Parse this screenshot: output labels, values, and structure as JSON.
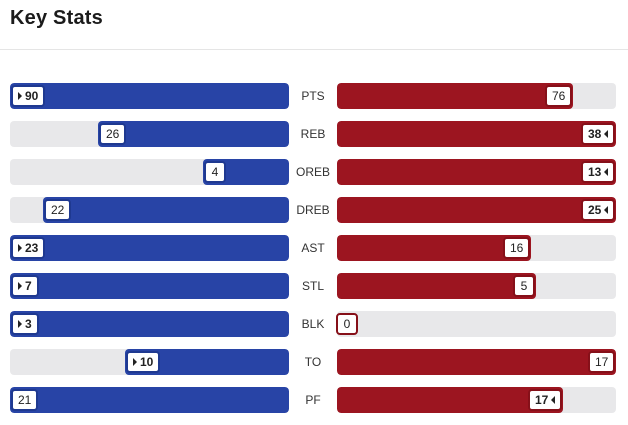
{
  "title": "Key Stats",
  "colors": {
    "left_team": "#2844a6",
    "right_team": "#9c1520",
    "track": "#e8e8ea"
  },
  "stats": [
    {
      "label": "PTS",
      "left": "90",
      "right": "76",
      "left_pct": 1.0,
      "right_pct": 0.845,
      "leader": "left"
    },
    {
      "label": "REB",
      "left": "26",
      "right": "38",
      "left_pct": 0.684,
      "right_pct": 1.0,
      "leader": "right"
    },
    {
      "label": "OREB",
      "left": "4",
      "right": "13",
      "left_pct": 0.308,
      "right_pct": 1.0,
      "leader": "right"
    },
    {
      "label": "DREB",
      "left": "22",
      "right": "25",
      "left_pct": 0.88,
      "right_pct": 1.0,
      "leader": "right"
    },
    {
      "label": "AST",
      "left": "23",
      "right": "16",
      "left_pct": 1.0,
      "right_pct": 0.696,
      "leader": "left"
    },
    {
      "label": "STL",
      "left": "7",
      "right": "5",
      "left_pct": 1.0,
      "right_pct": 0.714,
      "leader": "left"
    },
    {
      "label": "BLK",
      "left": "3",
      "right": "0",
      "left_pct": 1.0,
      "right_pct": 0.0,
      "leader": "left"
    },
    {
      "label": "TO",
      "left": "10",
      "right": "17",
      "left_pct": 0.588,
      "right_pct": 1.0,
      "leader": "left"
    },
    {
      "label": "PF",
      "left": "21",
      "right": "17",
      "left_pct": 1.0,
      "right_pct": 0.81,
      "leader": "right"
    }
  ]
}
